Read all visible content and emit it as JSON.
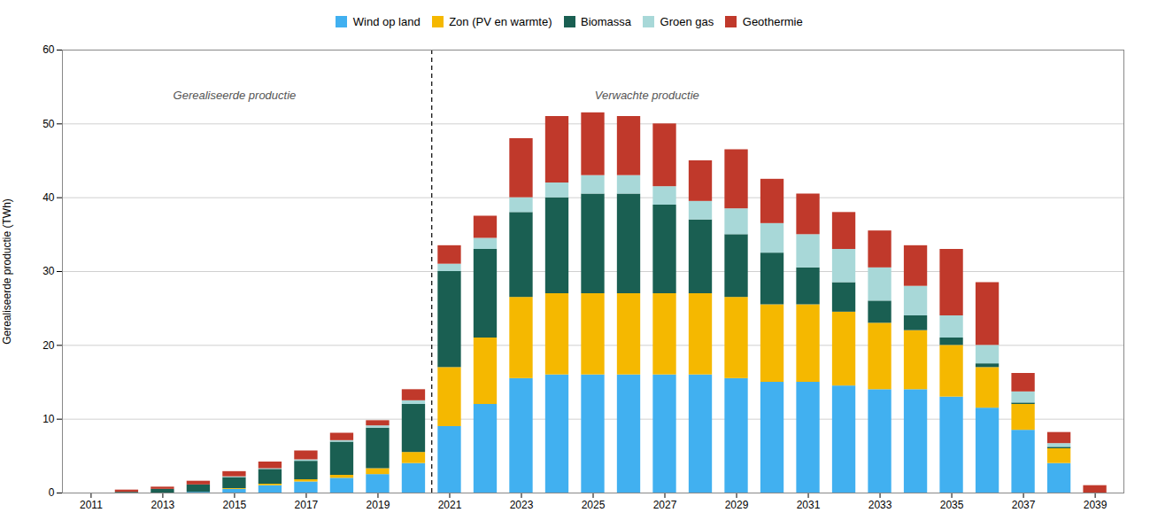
{
  "chart_data": {
    "type": "bar",
    "stacked": true,
    "x": [
      2011,
      2012,
      2013,
      2014,
      2015,
      2016,
      2017,
      2018,
      2019,
      2020,
      2021,
      2022,
      2023,
      2024,
      2025,
      2026,
      2027,
      2028,
      2029,
      2030,
      2031,
      2032,
      2033,
      2034,
      2035,
      2036,
      2037,
      2038,
      2039
    ],
    "xlim": [
      2010.2,
      2039.8
    ],
    "xticks": [
      2011,
      2013,
      2015,
      2017,
      2019,
      2021,
      2023,
      2025,
      2027,
      2029,
      2031,
      2033,
      2035,
      2037,
      2039
    ],
    "ylabel": "Gerealiseerde productie (TWh)",
    "ylim": [
      0,
      60
    ],
    "yticks": [
      0,
      10,
      20,
      30,
      40,
      50,
      60
    ],
    "grid": true,
    "legend": "top",
    "vline": 2020.5,
    "annotations": [
      {
        "text": "Gerealiseerde productie",
        "x": 2015.0,
        "y": 54.5
      },
      {
        "text": "Verwachte productie",
        "x": 2026.5,
        "y": 54.5
      }
    ],
    "series": [
      {
        "name": "Wind op land",
        "color": "#41B0F0",
        "values": [
          0.0,
          0.0,
          0.0,
          0.1,
          0.5,
          1.0,
          1.5,
          2.0,
          2.5,
          4.0,
          9.0,
          12.0,
          15.5,
          16.0,
          16.0,
          16.0,
          16.0,
          16.0,
          15.5,
          15.0,
          15.0,
          14.5,
          14.0,
          14.0,
          13.0,
          11.5,
          8.5,
          4.0,
          0.0
        ]
      },
      {
        "name": "Zon (PV en warmte)",
        "color": "#F5B800",
        "values": [
          0.0,
          0.0,
          0.0,
          0.0,
          0.1,
          0.2,
          0.3,
          0.4,
          0.8,
          1.5,
          8.0,
          9.0,
          11.0,
          11.0,
          11.0,
          11.0,
          11.0,
          11.0,
          11.0,
          10.5,
          10.5,
          10.0,
          9.0,
          8.0,
          7.0,
          5.5,
          3.5,
          2.0,
          0.0
        ]
      },
      {
        "name": "Biomassa",
        "color": "#1A5F52",
        "values": [
          0.0,
          0.1,
          0.5,
          1.0,
          1.5,
          2.0,
          2.5,
          4.5,
          5.5,
          6.5,
          13.0,
          12.0,
          11.5,
          13.0,
          13.5,
          13.5,
          12.0,
          10.0,
          8.5,
          7.0,
          5.0,
          4.0,
          3.0,
          2.0,
          1.0,
          0.5,
          0.2,
          0.2,
          0.0
        ]
      },
      {
        "name": "Groen gas",
        "color": "#A8D8D8",
        "values": [
          0.0,
          0.0,
          0.0,
          0.0,
          0.1,
          0.1,
          0.2,
          0.2,
          0.3,
          0.5,
          1.0,
          1.5,
          2.0,
          2.0,
          2.5,
          2.5,
          2.5,
          2.5,
          3.5,
          4.0,
          4.5,
          4.5,
          4.5,
          4.0,
          3.0,
          2.5,
          1.5,
          0.5,
          0.0
        ]
      },
      {
        "name": "Geothermie",
        "color": "#C0392B",
        "values": [
          0.0,
          0.3,
          0.3,
          0.5,
          0.7,
          0.9,
          1.2,
          1.0,
          0.7,
          1.5,
          2.5,
          3.0,
          8.0,
          9.0,
          8.5,
          8.0,
          8.5,
          5.5,
          8.0,
          6.0,
          5.5,
          5.0,
          5.0,
          5.5,
          9.0,
          8.5,
          2.5,
          1.5,
          1.0
        ]
      }
    ]
  }
}
